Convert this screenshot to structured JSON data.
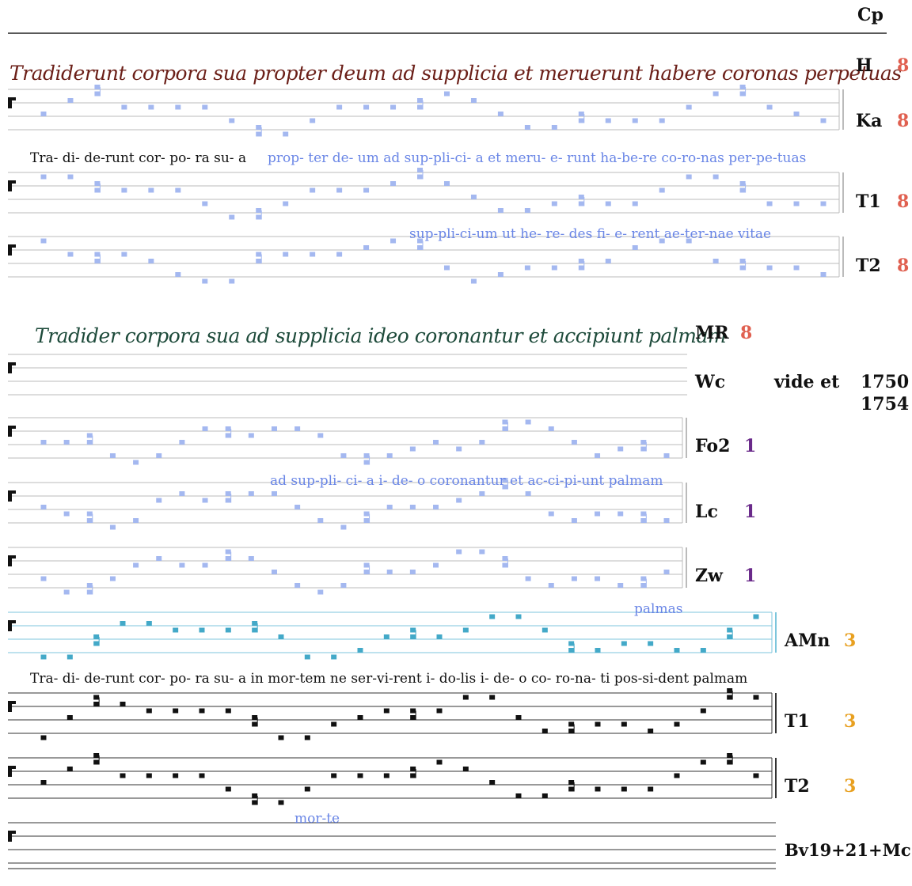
{
  "header": {
    "label": "Cp"
  },
  "colors": {
    "mode8": "#e06050",
    "mode1": "#6a2a8a",
    "mode3": "#e8a020",
    "light_blue": "#8fa8ee",
    "lyric_blue": "#6a86e6",
    "teal": "#43a9c8",
    "ms_brown": "#6b1f18",
    "ms_green": "#1d4a3a",
    "black": "#111111"
  },
  "manuscripts": {
    "h_text": "Tradiderunt corpora sua propter deum ad supplicia et meruerunt habere coronas perpetuas",
    "mr_text": "Tradider corpora sua ad supplicia ideo coronantur et accipiunt palmam"
  },
  "rows": [
    {
      "key": "h",
      "label": "H",
      "mode": "8",
      "mode_color": "#e06050"
    },
    {
      "key": "ka",
      "label": "Ka",
      "mode": "8",
      "mode_color": "#e06050"
    },
    {
      "key": "t1a",
      "label": "T1",
      "mode": "8",
      "mode_color": "#e06050"
    },
    {
      "key": "t2a",
      "label": "T2",
      "mode": "8",
      "mode_color": "#e06050"
    },
    {
      "key": "mr",
      "label": "MR",
      "mode": "8",
      "mode_color": "#e06050"
    },
    {
      "key": "wc",
      "label": "Wc",
      "mode": "",
      "mode_color": "#111111"
    },
    {
      "key": "fo2",
      "label": "Fo2",
      "mode": "1",
      "mode_color": "#6a2a8a"
    },
    {
      "key": "lc",
      "label": "Lc",
      "mode": "1",
      "mode_color": "#6a2a8a"
    },
    {
      "key": "zw",
      "label": "Zw",
      "mode": "1",
      "mode_color": "#6a2a8a"
    },
    {
      "key": "amn",
      "label": "AMn",
      "mode": "3",
      "mode_color": "#e8a020"
    },
    {
      "key": "t1b",
      "label": "T1",
      "mode": "3",
      "mode_color": "#e8a020"
    },
    {
      "key": "t2b",
      "label": "T2",
      "mode": "3",
      "mode_color": "#e8a020"
    },
    {
      "key": "bv",
      "label": "Bv19+21+Mc",
      "mode": "",
      "mode_color": "#111111"
    }
  ],
  "cross_ref": {
    "text": "vide et",
    "num1": "1750",
    "num2": "1754"
  },
  "lyrics": {
    "ka_black": "Tra- di- de-runt   cor- po- ra  su- a",
    "ka_blue": "prop- ter   de- um   ad sup-pli-ci- a   et meru- e- runt ha-be-re     co-ro-nas per-pe-tuas",
    "t1a_blue": "sup-pli-ci-um      ut   he- re-  des       fi-  e- rent    ae-ter-nae vitae",
    "fo2_blue": "ad  sup-pli- ci- a  i-   de- o  coronantur  et ac-ci-pi-unt palmam",
    "zw_blue": "palmas",
    "amn_black": "Tra- di- de-runt   cor- po- ra  su- a    in mor-tem ne ser-vi-rent i- do-lis   i- de- o co- ro-na- ti  pos-si-dent palmam",
    "t2b_blue": "mor-te"
  }
}
